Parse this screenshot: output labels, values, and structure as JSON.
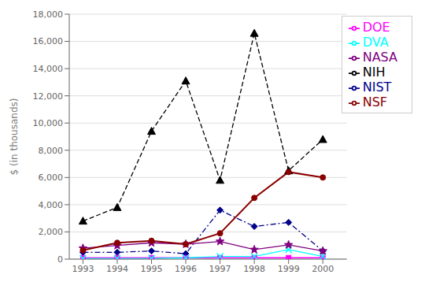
{
  "chart_data": {
    "type": "line",
    "ylabel": "$ (in thousands)",
    "x": [
      1993,
      1994,
      1995,
      1996,
      1997,
      1998,
      1999,
      2000
    ],
    "xlim": [
      1992.6,
      2000.7
    ],
    "xticks": [
      1993,
      1994,
      1995,
      1996,
      1997,
      1998,
      1999,
      2000
    ],
    "ylim": [
      0,
      18000
    ],
    "yticks": [
      0,
      {
        "value": 2000,
        "label": "2,000"
      },
      {
        "value": 4000,
        "label": "4,000"
      },
      {
        "value": 6000,
        "label": "6,000"
      },
      {
        "value": 8000,
        "label": "8,000"
      },
      {
        "value": 10000,
        "label": "10,000"
      },
      {
        "value": 12000,
        "label": "12,000"
      },
      {
        "value": 14000,
        "label": "14,000"
      },
      {
        "value": 16000,
        "label": "16,000"
      },
      {
        "value": 18000,
        "label": "18,000"
      }
    ],
    "grid": "y",
    "legend": "upper right",
    "series": [
      {
        "name": "NIST",
        "color": "#00008b",
        "marker": "diamond",
        "line_style": "dashdot",
        "values": [
          500,
          500,
          600,
          400,
          3600,
          2400,
          2700,
          600
        ]
      },
      {
        "name": "DOE",
        "color": "#ff00ff",
        "marker": "square",
        "line_style": "solid",
        "values": [
          100,
          100,
          100,
          100,
          100,
          100,
          100,
          100
        ]
      },
      {
        "name": "NIH",
        "color": "#000000",
        "marker": "triangle",
        "line_style": "dashed",
        "values": [
          2800,
          3800,
          9400,
          13100,
          5800,
          16600,
          6500,
          8800
        ]
      },
      {
        "name": "DVA",
        "color": "#00ffff",
        "marker": "x",
        "line_style": "solid",
        "values": [
          50,
          50,
          50,
          100,
          200,
          200,
          700,
          200
        ]
      },
      {
        "name": "NASA",
        "color": "#800080",
        "marker": "star",
        "line_style": "solid",
        "values": [
          800,
          1000,
          1200,
          1100,
          1300,
          700,
          1050,
          600
        ]
      },
      {
        "name": "NSF",
        "color": "#8b0000",
        "marker": "circle",
        "line_style": "solid",
        "values": [
          650,
          1200,
          1350,
          1100,
          1900,
          4500,
          6400,
          6000
        ]
      }
    ]
  }
}
